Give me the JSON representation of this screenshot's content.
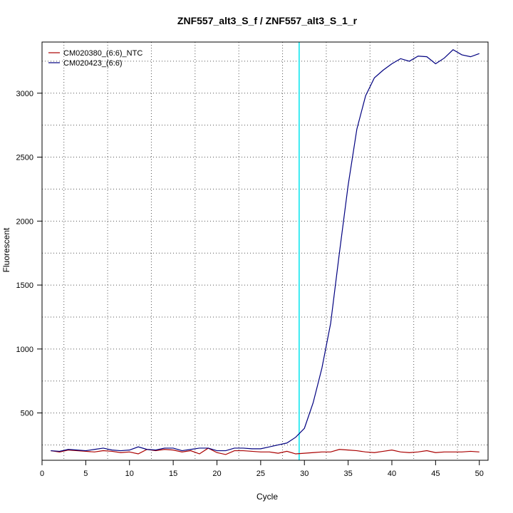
{
  "chart_data": {
    "type": "line",
    "title": "ZNF557_alt3_S_f / ZNF557_alt3_S_1_r",
    "xlabel": "Cycle",
    "ylabel": "Fluorescent",
    "xlim": [
      0,
      51
    ],
    "ylim": [
      130,
      3400
    ],
    "xticks": [
      0,
      5,
      10,
      15,
      20,
      25,
      30,
      35,
      40,
      45,
      50
    ],
    "yticks": [
      500,
      1000,
      1500,
      2000,
      2500,
      3000
    ],
    "grid": true,
    "legend_position": "top-left",
    "threshold_line": {
      "x": 29.4,
      "color": "#00e5ee"
    },
    "x": [
      1,
      2,
      3,
      4,
      5,
      6,
      7,
      8,
      9,
      10,
      11,
      12,
      13,
      14,
      15,
      16,
      17,
      18,
      19,
      20,
      21,
      22,
      23,
      24,
      25,
      26,
      27,
      28,
      29,
      30,
      31,
      32,
      33,
      34,
      35,
      36,
      37,
      38,
      39,
      40,
      41,
      42,
      43,
      44,
      45,
      46,
      47,
      48,
      49,
      50
    ],
    "series": [
      {
        "name": "CM020380_(6:6)_NTC",
        "color": "#aa0000",
        "values": [
          205,
          195,
          210,
          205,
          200,
          195,
          205,
          200,
          190,
          195,
          180,
          215,
          205,
          215,
          210,
          195,
          205,
          180,
          225,
          190,
          175,
          205,
          205,
          200,
          195,
          195,
          185,
          200,
          180,
          185,
          190,
          195,
          195,
          215,
          210,
          205,
          195,
          190,
          200,
          210,
          195,
          190,
          195,
          205,
          190,
          195,
          195,
          195,
          200,
          195
        ]
      },
      {
        "name": "CM020423_(6:6)",
        "color": "#000080",
        "values": [
          205,
          200,
          215,
          210,
          205,
          215,
          225,
          210,
          205,
          210,
          235,
          215,
          210,
          225,
          225,
          205,
          215,
          225,
          225,
          205,
          205,
          225,
          225,
          220,
          220,
          235,
          250,
          265,
          310,
          380,
          580,
          850,
          1200,
          1750,
          2280,
          2720,
          2980,
          3120,
          3180,
          3230,
          3270,
          3250,
          3290,
          3285,
          3230,
          3275,
          3340,
          3300,
          3285,
          3310
        ]
      }
    ]
  }
}
